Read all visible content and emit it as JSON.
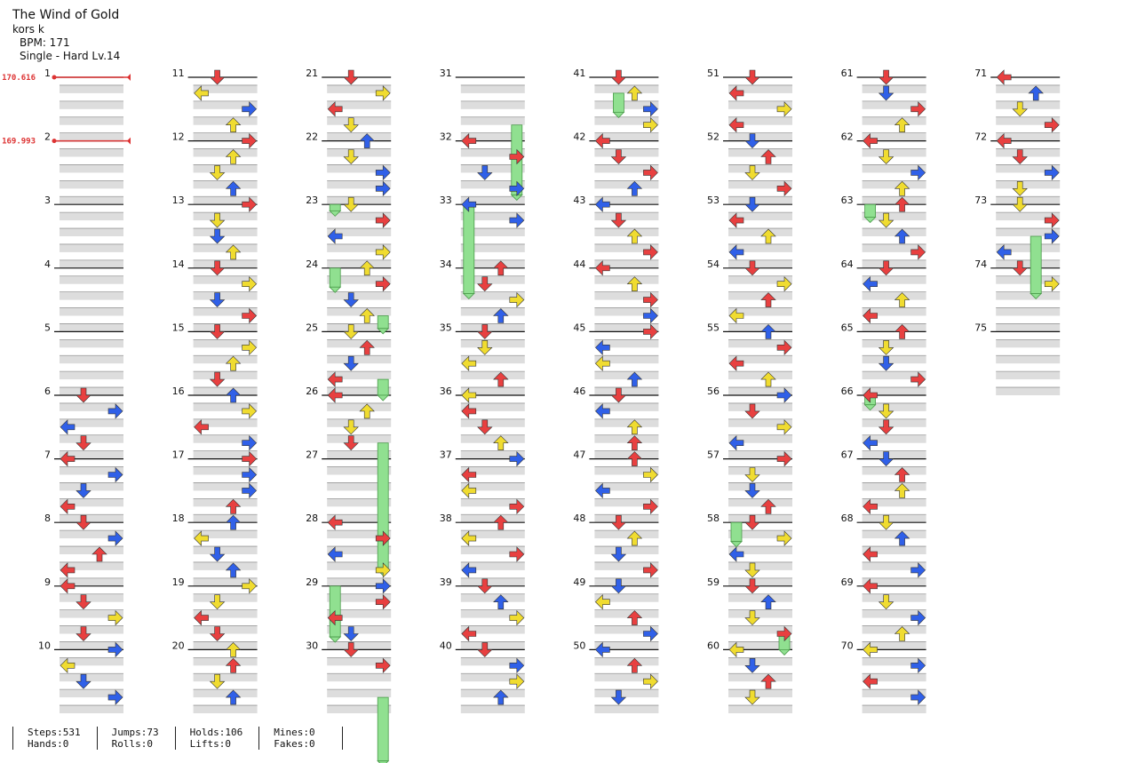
{
  "header": {
    "title": "The Wind of Gold",
    "artist": "kors k",
    "bpm": "BPM: 171",
    "difficulty": "Single - Hard  Lv.14"
  },
  "bpm_changes": [
    {
      "measure": 1,
      "label": "170.616"
    },
    {
      "measure": 2,
      "label": "169.993"
    }
  ],
  "colors": {
    "red": "#e84040",
    "blue": "#3060e8",
    "yellow": "#f0dc30",
    "hold": "#90e090",
    "beat_band": "#dddddd",
    "bpm_line": "#dd3333"
  },
  "measure_count": 75,
  "stats": [
    {
      "a": "Steps:531",
      "b": "Hands:0"
    },
    {
      "a": "Jumps:73",
      "b": "Rolls:0"
    },
    {
      "a": "Holds:106",
      "b": "Lifts:0"
    },
    {
      "a": "Mines:0",
      "b": "Fakes:0"
    }
  ],
  "notes": [
    [
      6,
      0,
      "red",
      "down"
    ],
    [
      6,
      1,
      "blue",
      "right"
    ],
    [
      6,
      2,
      "blue",
      "left"
    ],
    [
      6,
      3,
      "red",
      "down"
    ],
    [
      7,
      0,
      "red",
      "left"
    ],
    [
      7,
      1,
      "blue",
      "right"
    ],
    [
      7,
      2,
      "blue",
      "down"
    ],
    [
      7,
      3,
      "red",
      "left"
    ],
    [
      8,
      0,
      "red",
      "down"
    ],
    [
      8,
      1,
      "blue",
      "right"
    ],
    [
      8,
      2,
      "red",
      "up"
    ],
    [
      8,
      3,
      "red",
      "left"
    ],
    [
      9,
      0,
      "red",
      "left"
    ],
    [
      9,
      1,
      "red",
      "down"
    ],
    [
      9,
      2,
      "yellow",
      "right"
    ],
    [
      9,
      3,
      "red",
      "down"
    ],
    [
      10,
      0,
      "blue",
      "right"
    ],
    [
      10,
      1,
      "yellow",
      "left"
    ],
    [
      10,
      2,
      "blue",
      "down"
    ],
    [
      10,
      3,
      "blue",
      "right"
    ],
    [
      11,
      0,
      "red",
      "down"
    ],
    [
      11,
      1,
      "yellow",
      "left"
    ],
    [
      11,
      2,
      "blue",
      "right"
    ],
    [
      11,
      3,
      "yellow",
      "up"
    ],
    [
      12,
      0,
      "red",
      "right"
    ],
    [
      12,
      1,
      "yellow",
      "up"
    ],
    [
      12,
      2,
      "yellow",
      "down"
    ],
    [
      12,
      3,
      "blue",
      "up"
    ],
    [
      13,
      0,
      "red",
      "right"
    ],
    [
      13,
      1,
      "yellow",
      "down"
    ],
    [
      13,
      2,
      "blue",
      "down"
    ],
    [
      13,
      3,
      "yellow",
      "up"
    ],
    [
      14,
      0,
      "red",
      "down"
    ],
    [
      14,
      1,
      "yellow",
      "right"
    ],
    [
      14,
      2,
      "blue",
      "down"
    ],
    [
      14,
      3,
      "red",
      "right"
    ],
    [
      15,
      0,
      "red",
      "down"
    ],
    [
      15,
      1,
      "yellow",
      "right"
    ],
    [
      15,
      2,
      "yellow",
      "up"
    ],
    [
      15,
      3,
      "red",
      "down"
    ],
    [
      16,
      0,
      "blue",
      "up"
    ],
    [
      16,
      1,
      "yellow",
      "right"
    ],
    [
      16,
      2,
      "red",
      "left"
    ],
    [
      16,
      3,
      "blue",
      "right"
    ],
    [
      17,
      0,
      "red",
      "right"
    ],
    [
      17,
      1,
      "blue",
      "right"
    ],
    [
      17,
      2,
      "blue",
      "right"
    ],
    [
      17,
      3,
      "red",
      "up"
    ],
    [
      18,
      0,
      "blue",
      "up"
    ],
    [
      18,
      1,
      "yellow",
      "left"
    ],
    [
      18,
      2,
      "blue",
      "down"
    ],
    [
      18,
      3,
      "blue",
      "up"
    ],
    [
      19,
      0,
      "yellow",
      "right"
    ],
    [
      19,
      1,
      "yellow",
      "down"
    ],
    [
      19,
      2,
      "red",
      "left"
    ],
    [
      19,
      3,
      "red",
      "down"
    ],
    [
      20,
      0,
      "yellow",
      "up"
    ],
    [
      20,
      1,
      "red",
      "up"
    ],
    [
      20,
      2,
      "yellow",
      "down"
    ],
    [
      20,
      3,
      "blue",
      "up"
    ],
    [
      21,
      0,
      "red",
      "down"
    ],
    [
      21,
      1,
      "yellow",
      "right"
    ],
    [
      21,
      2,
      "red",
      "left"
    ],
    [
      21,
      3,
      "yellow",
      "down"
    ],
    [
      22,
      0,
      "blue",
      "up"
    ],
    [
      22,
      1,
      "yellow",
      "down"
    ],
    [
      22,
      2,
      "blue",
      "right"
    ],
    [
      22,
      3,
      "blue",
      "right"
    ],
    [
      23,
      0,
      "yellow",
      "down"
    ],
    [
      23,
      1,
      "red",
      "right"
    ],
    [
      23,
      2,
      "blue",
      "left"
    ],
    [
      23,
      3,
      "yellow",
      "right"
    ],
    [
      24,
      0,
      "yellow",
      "up"
    ],
    [
      24,
      1,
      "red",
      "right"
    ],
    [
      24,
      2,
      "blue",
      "down"
    ],
    [
      24,
      3,
      "yellow",
      "up"
    ],
    [
      25,
      0,
      "yellow",
      "down"
    ],
    [
      25,
      1,
      "red",
      "up"
    ],
    [
      25,
      2,
      "blue",
      "down"
    ],
    [
      25,
      3,
      "red",
      "left"
    ],
    [
      26,
      0,
      "red",
      "left"
    ],
    [
      26,
      1,
      "yellow",
      "up"
    ],
    [
      26,
      2,
      "yellow",
      "down"
    ],
    [
      26,
      3,
      "red",
      "down"
    ],
    [
      28,
      0,
      "red",
      "left"
    ],
    [
      28,
      1,
      "red",
      "right"
    ],
    [
      28,
      2,
      "blue",
      "left"
    ],
    [
      28,
      3,
      "yellow",
      "right"
    ],
    [
      29,
      0,
      "blue",
      "right"
    ],
    [
      29,
      1,
      "red",
      "right"
    ],
    [
      29,
      2,
      "red",
      "left"
    ],
    [
      29,
      3,
      "blue",
      "down"
    ],
    [
      30,
      0,
      "red",
      "down"
    ],
    [
      30,
      1,
      "red",
      "right"
    ],
    [
      32,
      0,
      "red",
      "left"
    ],
    [
      32,
      1,
      "red",
      "right"
    ],
    [
      32,
      2,
      "blue",
      "down"
    ],
    [
      32,
      3,
      "blue",
      "right"
    ],
    [
      33,
      0,
      "blue",
      "left"
    ],
    [
      33,
      1,
      "blue",
      "right"
    ],
    [
      34,
      0,
      "red",
      "up"
    ],
    [
      34,
      1,
      "red",
      "down"
    ],
    [
      34,
      2,
      "yellow",
      "right"
    ],
    [
      34,
      3,
      "blue",
      "up"
    ],
    [
      35,
      0,
      "red",
      "down"
    ],
    [
      35,
      1,
      "yellow",
      "down"
    ],
    [
      35,
      2,
      "yellow",
      "left"
    ],
    [
      35,
      3,
      "red",
      "up"
    ],
    [
      36,
      0,
      "yellow",
      "left"
    ],
    [
      36,
      1,
      "red",
      "left"
    ],
    [
      36,
      2,
      "red",
      "down"
    ],
    [
      36,
      3,
      "yellow",
      "up"
    ],
    [
      37,
      0,
      "blue",
      "right"
    ],
    [
      37,
      1,
      "red",
      "left"
    ],
    [
      37,
      2,
      "yellow",
      "left"
    ],
    [
      37,
      3,
      "red",
      "right"
    ],
    [
      38,
      0,
      "red",
      "up"
    ],
    [
      38,
      1,
      "yellow",
      "left"
    ],
    [
      38,
      2,
      "red",
      "right"
    ],
    [
      38,
      3,
      "blue",
      "left"
    ],
    [
      39,
      0,
      "red",
      "down"
    ],
    [
      39,
      1,
      "blue",
      "up"
    ],
    [
      39,
      2,
      "yellow",
      "right"
    ],
    [
      39,
      3,
      "red",
      "left"
    ],
    [
      40,
      0,
      "red",
      "down"
    ],
    [
      40,
      1,
      "blue",
      "right"
    ],
    [
      40,
      2,
      "yellow",
      "right"
    ],
    [
      40,
      3,
      "blue",
      "up"
    ],
    [
      41,
      0,
      "red",
      "down"
    ],
    [
      41,
      1,
      "yellow",
      "up"
    ],
    [
      41,
      2,
      "blue",
      "right"
    ],
    [
      41,
      3,
      "yellow",
      "right"
    ],
    [
      42,
      0,
      "red",
      "left"
    ],
    [
      42,
      1,
      "red",
      "down"
    ],
    [
      42,
      2,
      "red",
      "right"
    ],
    [
      42,
      3,
      "blue",
      "up"
    ],
    [
      43,
      0,
      "blue",
      "left"
    ],
    [
      43,
      1,
      "red",
      "down"
    ],
    [
      43,
      2,
      "yellow",
      "up"
    ],
    [
      43,
      3,
      "red",
      "right"
    ],
    [
      44,
      0,
      "red",
      "left"
    ],
    [
      44,
      1,
      "yellow",
      "up"
    ],
    [
      44,
      2,
      "red",
      "right"
    ],
    [
      44,
      3,
      "blue",
      "right"
    ],
    [
      45,
      0,
      "red",
      "right"
    ],
    [
      45,
      1,
      "blue",
      "left"
    ],
    [
      45,
      2,
      "yellow",
      "left"
    ],
    [
      45,
      3,
      "blue",
      "up"
    ],
    [
      46,
      0,
      "red",
      "down"
    ],
    [
      46,
      1,
      "blue",
      "left"
    ],
    [
      46,
      2,
      "yellow",
      "up"
    ],
    [
      46,
      3,
      "red",
      "up"
    ],
    [
      47,
      0,
      "red",
      "up"
    ],
    [
      47,
      1,
      "yellow",
      "right"
    ],
    [
      47,
      2,
      "blue",
      "left"
    ],
    [
      47,
      3,
      "red",
      "right"
    ],
    [
      48,
      0,
      "red",
      "down"
    ],
    [
      48,
      1,
      "yellow",
      "up"
    ],
    [
      48,
      2,
      "blue",
      "down"
    ],
    [
      48,
      3,
      "red",
      "right"
    ],
    [
      49,
      0,
      "blue",
      "down"
    ],
    [
      49,
      1,
      "yellow",
      "left"
    ],
    [
      49,
      2,
      "red",
      "up"
    ],
    [
      49,
      3,
      "blue",
      "right"
    ],
    [
      50,
      0,
      "blue",
      "left"
    ],
    [
      50,
      1,
      "red",
      "up"
    ],
    [
      50,
      2,
      "yellow",
      "right"
    ],
    [
      50,
      3,
      "blue",
      "down"
    ],
    [
      51,
      0,
      "red",
      "down"
    ],
    [
      51,
      1,
      "red",
      "left"
    ],
    [
      51,
      2,
      "yellow",
      "right"
    ],
    [
      51,
      3,
      "red",
      "left"
    ],
    [
      52,
      0,
      "blue",
      "down"
    ],
    [
      52,
      1,
      "red",
      "up"
    ],
    [
      52,
      2,
      "yellow",
      "down"
    ],
    [
      52,
      3,
      "red",
      "right"
    ],
    [
      53,
      0,
      "blue",
      "down"
    ],
    [
      53,
      1,
      "red",
      "left"
    ],
    [
      53,
      2,
      "yellow",
      "up"
    ],
    [
      53,
      3,
      "blue",
      "left"
    ],
    [
      54,
      0,
      "red",
      "down"
    ],
    [
      54,
      1,
      "yellow",
      "right"
    ],
    [
      54,
      2,
      "red",
      "up"
    ],
    [
      54,
      3,
      "yellow",
      "left"
    ],
    [
      55,
      0,
      "blue",
      "up"
    ],
    [
      55,
      1,
      "red",
      "right"
    ],
    [
      55,
      2,
      "red",
      "left"
    ],
    [
      55,
      3,
      "yellow",
      "up"
    ],
    [
      56,
      0,
      "blue",
      "right"
    ],
    [
      56,
      1,
      "red",
      "down"
    ],
    [
      56,
      2,
      "yellow",
      "right"
    ],
    [
      56,
      3,
      "blue",
      "left"
    ],
    [
      57,
      0,
      "red",
      "right"
    ],
    [
      57,
      1,
      "yellow",
      "down"
    ],
    [
      57,
      2,
      "blue",
      "down"
    ],
    [
      57,
      3,
      "red",
      "up"
    ],
    [
      58,
      0,
      "red",
      "down"
    ],
    [
      58,
      1,
      "yellow",
      "right"
    ],
    [
      58,
      2,
      "blue",
      "left"
    ],
    [
      58,
      3,
      "yellow",
      "down"
    ],
    [
      59,
      0,
      "red",
      "down"
    ],
    [
      59,
      1,
      "blue",
      "up"
    ],
    [
      59,
      2,
      "yellow",
      "down"
    ],
    [
      59,
      3,
      "red",
      "right"
    ],
    [
      60,
      0,
      "yellow",
      "left"
    ],
    [
      60,
      1,
      "blue",
      "down"
    ],
    [
      60,
      2,
      "red",
      "up"
    ],
    [
      60,
      3,
      "yellow",
      "down"
    ],
    [
      61,
      0,
      "red",
      "down"
    ],
    [
      61,
      1,
      "blue",
      "down"
    ],
    [
      61,
      2,
      "red",
      "right"
    ],
    [
      61,
      3,
      "yellow",
      "up"
    ],
    [
      62,
      0,
      "red",
      "left"
    ],
    [
      62,
      1,
      "yellow",
      "down"
    ],
    [
      62,
      2,
      "blue",
      "right"
    ],
    [
      62,
      3,
      "yellow",
      "up"
    ],
    [
      63,
      0,
      "red",
      "up"
    ],
    [
      63,
      1,
      "yellow",
      "down"
    ],
    [
      63,
      2,
      "blue",
      "up"
    ],
    [
      63,
      3,
      "red",
      "right"
    ],
    [
      64,
      0,
      "red",
      "down"
    ],
    [
      64,
      1,
      "blue",
      "left"
    ],
    [
      64,
      2,
      "yellow",
      "up"
    ],
    [
      64,
      3,
      "red",
      "left"
    ],
    [
      65,
      0,
      "red",
      "up"
    ],
    [
      65,
      1,
      "yellow",
      "down"
    ],
    [
      65,
      2,
      "blue",
      "down"
    ],
    [
      65,
      3,
      "red",
      "right"
    ],
    [
      66,
      0,
      "red",
      "left"
    ],
    [
      66,
      1,
      "yellow",
      "down"
    ],
    [
      66,
      2,
      "red",
      "down"
    ],
    [
      66,
      3,
      "blue",
      "left"
    ],
    [
      67,
      0,
      "blue",
      "down"
    ],
    [
      67,
      1,
      "red",
      "up"
    ],
    [
      67,
      2,
      "yellow",
      "up"
    ],
    [
      67,
      3,
      "red",
      "left"
    ],
    [
      68,
      0,
      "yellow",
      "down"
    ],
    [
      68,
      1,
      "blue",
      "up"
    ],
    [
      68,
      2,
      "red",
      "left"
    ],
    [
      68,
      3,
      "blue",
      "right"
    ],
    [
      69,
      0,
      "red",
      "left"
    ],
    [
      69,
      1,
      "yellow",
      "down"
    ],
    [
      69,
      2,
      "blue",
      "right"
    ],
    [
      69,
      3,
      "yellow",
      "up"
    ],
    [
      70,
      0,
      "yellow",
      "left"
    ],
    [
      70,
      1,
      "blue",
      "right"
    ],
    [
      70,
      2,
      "red",
      "left"
    ],
    [
      70,
      3,
      "blue",
      "right"
    ],
    [
      71,
      0,
      "red",
      "left"
    ],
    [
      71,
      1,
      "blue",
      "up"
    ],
    [
      71,
      2,
      "yellow",
      "down"
    ],
    [
      71,
      3,
      "red",
      "right"
    ],
    [
      72,
      0,
      "red",
      "left"
    ],
    [
      72,
      1,
      "red",
      "down"
    ],
    [
      72,
      2,
      "blue",
      "right"
    ],
    [
      72,
      3,
      "yellow",
      "down"
    ],
    [
      73,
      0,
      "yellow",
      "down"
    ],
    [
      73,
      1,
      "red",
      "right"
    ],
    [
      73,
      2,
      "blue",
      "right"
    ],
    [
      73,
      3,
      "blue",
      "left"
    ],
    [
      74,
      0,
      "red",
      "down"
    ],
    [
      74,
      1,
      "yellow",
      "right"
    ]
  ],
  "holds": [
    [
      23,
      0,
      0.1,
      "red"
    ],
    [
      24,
      0,
      0.3,
      "yellow"
    ],
    [
      24,
      3,
      0.2,
      "red"
    ],
    [
      25,
      3,
      0.25,
      "yellow"
    ],
    [
      26,
      3,
      2.0,
      "yellow"
    ],
    [
      29,
      0,
      0.8,
      "blue"
    ],
    [
      30,
      3,
      1.0,
      "red"
    ],
    [
      31,
      3,
      1.1,
      "yellow"
    ],
    [
      33,
      0,
      1.4,
      "blue"
    ],
    [
      41,
      1,
      0.3,
      "red"
    ],
    [
      58,
      0,
      0.3,
      "red"
    ],
    [
      59,
      3,
      0.25,
      "blue"
    ],
    [
      63,
      0,
      0.2,
      "red"
    ],
    [
      66,
      0,
      0.15,
      "red"
    ],
    [
      73,
      2,
      0.9,
      "red"
    ]
  ]
}
